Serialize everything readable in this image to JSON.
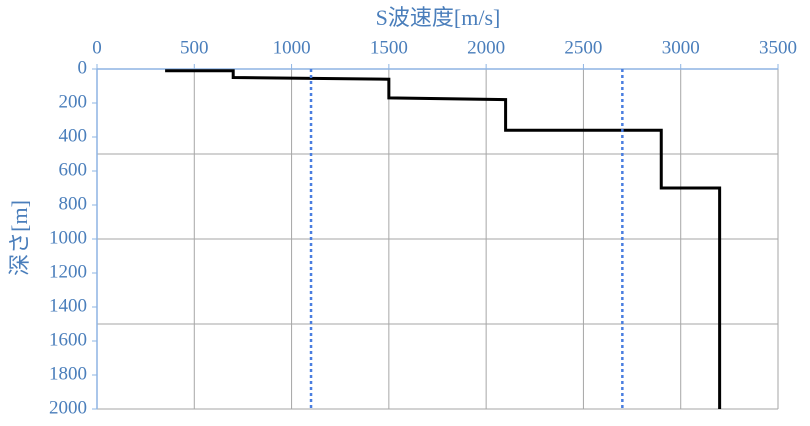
{
  "chart_data": {
    "type": "line",
    "x_label": "S波速度[m/s]",
    "y_label": "深さ[m]",
    "xlim": [
      0,
      3500
    ],
    "xticks": [
      0,
      500,
      1000,
      1500,
      2000,
      2500,
      3000,
      3500
    ],
    "ylim": [
      0,
      2000
    ],
    "yticks": [
      0,
      200,
      400,
      600,
      800,
      1000,
      1200,
      1400,
      1600,
      1800,
      2000
    ],
    "y_inverted": true,
    "x_axis_top": true,
    "ygrid": [
      500,
      1000,
      1500,
      2000
    ],
    "grid": true,
    "series": [
      {
        "color": "#000000",
        "dashed": false,
        "x": [
          350,
          700,
          700,
          1500,
          1500,
          2100,
          2100,
          2900,
          2900,
          3200,
          3200
        ],
        "values": [
          10,
          10,
          50,
          60,
          170,
          180,
          360,
          360,
          700,
          700,
          2000
        ]
      },
      {
        "color": "#4a7ee0",
        "dashed": true,
        "x": [
          1100,
          1100
        ],
        "values": [
          0,
          2000
        ]
      },
      {
        "color": "#4a7ee0",
        "dashed": true,
        "x": [
          2700,
          2700
        ],
        "values": [
          0,
          2000
        ]
      }
    ]
  }
}
